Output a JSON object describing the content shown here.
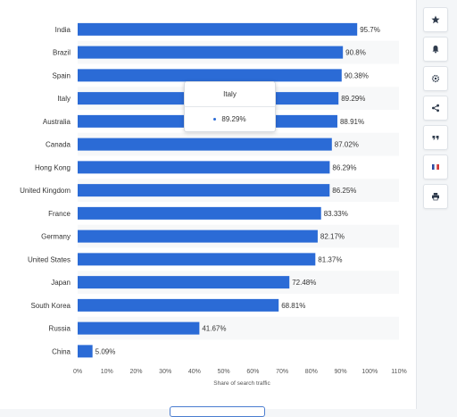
{
  "chart_data": {
    "type": "bar",
    "orientation": "horizontal",
    "categories": [
      "India",
      "Brazil",
      "Spain",
      "Italy",
      "Australia",
      "Canada",
      "Hong Kong",
      "United Kingdom",
      "France",
      "Germany",
      "United States",
      "Japan",
      "South Korea",
      "Russia",
      "China"
    ],
    "values": [
      95.7,
      90.8,
      90.38,
      89.29,
      88.91,
      87.02,
      86.29,
      86.25,
      83.33,
      82.17,
      81.37,
      72.48,
      68.81,
      41.67,
      5.09
    ],
    "value_labels": [
      "95.7%",
      "90.8%",
      "90.38%",
      "89.29%",
      "88.91%",
      "87.02%",
      "86.29%",
      "86.25%",
      "83.33%",
      "82.17%",
      "81.37%",
      "72.48%",
      "68.81%",
      "41.67%",
      "5.09%"
    ],
    "xlim": [
      0,
      110
    ],
    "x_ticks": [
      "0%",
      "10%",
      "20%",
      "30%",
      "40%",
      "50%",
      "60%",
      "70%",
      "80%",
      "90%",
      "100%",
      "110%"
    ],
    "xlabel": "Share of search traffic",
    "ylabel": "",
    "title": "",
    "bar_color": "#2b6bd6",
    "grid": "alternating row bands",
    "legend": "none"
  },
  "tooltip": {
    "title": "Italy",
    "value": "89.29%"
  },
  "toolbar": {
    "items": [
      {
        "name": "star-button",
        "icon": "star-icon"
      },
      {
        "name": "notification-button",
        "icon": "bell-icon"
      },
      {
        "name": "settings-button",
        "icon": "gear-icon"
      },
      {
        "name": "share-button",
        "icon": "share-icon"
      },
      {
        "name": "cite-button",
        "icon": "quote-icon"
      },
      {
        "name": "language-button",
        "icon": "french-flag-icon"
      },
      {
        "name": "print-button",
        "icon": "print-icon"
      }
    ]
  }
}
